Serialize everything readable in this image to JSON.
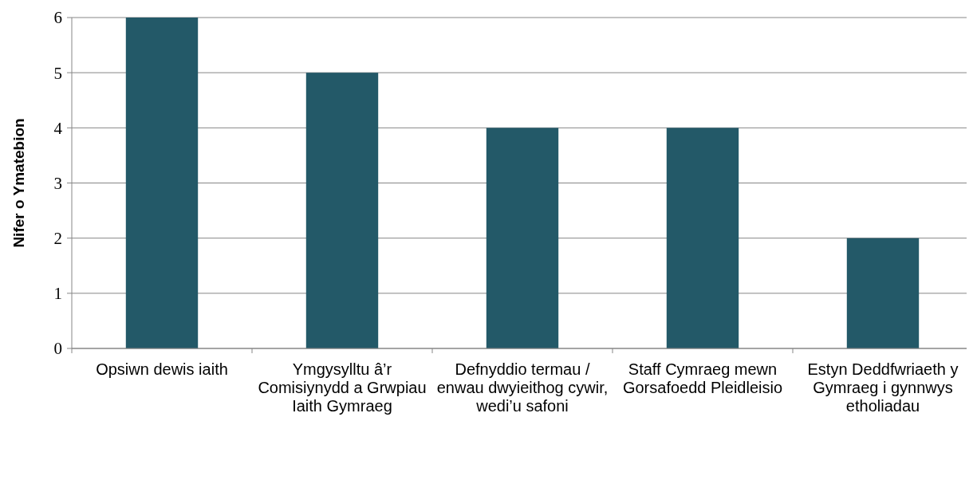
{
  "chart_data": {
    "type": "bar",
    "ylabel": "Nifer o Ymatebion",
    "categories": [
      "Opsiwn dewis iaith",
      "Ymgysylltu â’r Comisiynydd a Grwpiau Iaith Gymraeg",
      "Defnyddio termau / enwau dwyieithog cywir, wedi’u safoni",
      "Staff Cymraeg mewn Gorsafoedd Pleidleisio",
      "Estyn Deddfwriaeth y Gymraeg i gynnwys etholiadau"
    ],
    "values": [
      6,
      5,
      4,
      4,
      2
    ],
    "color": "#235968",
    "ylim": [
      0,
      6
    ],
    "yticks": [
      0,
      1,
      2,
      3,
      4,
      5,
      6
    ],
    "grid": "y"
  }
}
